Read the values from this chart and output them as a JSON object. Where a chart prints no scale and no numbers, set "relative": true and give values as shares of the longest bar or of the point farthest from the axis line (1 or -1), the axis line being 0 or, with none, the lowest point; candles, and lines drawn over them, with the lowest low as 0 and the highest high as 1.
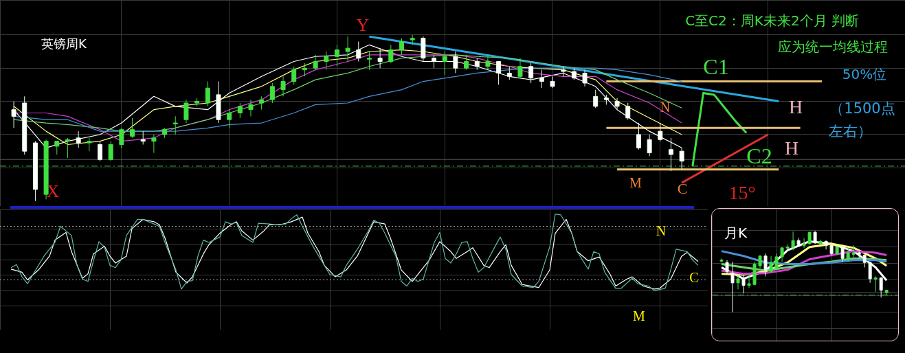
{
  "chart_data": [
    {
      "type": "candlestick",
      "title": "英镑周K",
      "relative": true,
      "grid": true,
      "tick_labels": false,
      "categories": [
        null,
        null,
        null,
        null,
        null,
        null,
        null,
        null,
        null,
        null,
        null,
        null,
        null,
        null,
        null,
        null,
        null,
        null,
        null,
        null,
        null,
        null,
        null,
        null,
        null,
        null,
        null,
        null,
        null,
        null,
        null,
        null,
        null,
        null,
        null,
        null,
        null,
        null,
        null,
        null,
        null,
        null,
        null,
        null,
        null,
        null,
        null,
        null,
        null,
        null,
        null,
        null,
        null,
        null,
        null,
        null,
        null,
        null,
        null,
        null,
        null,
        null,
        null,
        null,
        null,
        null,
        null,
        null,
        null,
        null,
        null,
        null,
        null,
        null,
        null,
        null,
        null,
        null,
        null,
        null,
        null,
        null
      ],
      "ohlc": [
        [
          0.55,
          0.6,
          0.44,
          0.51
        ],
        [
          0.59,
          0.63,
          0.28,
          0.3
        ],
        [
          0.35,
          0.36,
          0,
          0.07
        ],
        [
          0.04,
          0.37,
          0.01,
          0.36
        ],
        [
          0.33,
          0.36,
          0.28,
          0.36
        ],
        [
          0.36,
          0.38,
          0.26,
          0.37
        ],
        [
          0.38,
          0.42,
          0.32,
          0.35
        ],
        [
          0.35,
          0.38,
          0.3,
          0.36
        ],
        [
          0.34,
          0.36,
          0.24,
          0.25
        ],
        [
          0.25,
          0.36,
          0.24,
          0.34
        ],
        [
          0.34,
          0.44,
          0.32,
          0.43
        ],
        [
          0.39,
          0.5,
          0.38,
          0.43
        ],
        [
          0.37,
          0.42,
          0.34,
          0.36
        ],
        [
          0.36,
          0.4,
          0.29,
          0.38
        ],
        [
          0.4,
          0.44,
          0.38,
          0.43
        ],
        [
          0.47,
          0.51,
          0.4,
          0.47
        ],
        [
          0.49,
          0.61,
          0.47,
          0.59
        ],
        [
          0.59,
          0.62,
          0.57,
          0.6
        ],
        [
          0.59,
          0.72,
          0.57,
          0.68
        ],
        [
          0.64,
          0.72,
          0.47,
          0.49
        ],
        [
          0.49,
          0.55,
          0.44,
          0.53
        ],
        [
          0.53,
          0.59,
          0.5,
          0.57
        ],
        [
          0.55,
          0.61,
          0.51,
          0.58
        ],
        [
          0.59,
          0.63,
          0.55,
          0.61
        ],
        [
          0.61,
          0.71,
          0.59,
          0.69
        ],
        [
          0.67,
          0.75,
          0.63,
          0.72
        ],
        [
          0.72,
          0.81,
          0.7,
          0.79
        ],
        [
          0.79,
          0.83,
          0.75,
          0.8
        ],
        [
          0.8,
          0.88,
          0.79,
          0.84
        ],
        [
          0.84,
          0.9,
          0.79,
          0.87
        ],
        [
          0.87,
          0.94,
          0.81,
          0.91
        ],
        [
          0.9,
          0.99,
          0.84,
          0.92
        ],
        [
          0.91,
          0.96,
          0.84,
          0.86
        ],
        [
          0.86,
          0.9,
          0.79,
          0.86
        ],
        [
          0.86,
          0.92,
          0.8,
          0.84
        ],
        [
          0.84,
          0.94,
          0.83,
          0.91
        ],
        [
          0.91,
          0.98,
          0.88,
          0.96
        ],
        [
          0.97,
          1.0,
          0.94,
          0.98
        ],
        [
          0.98,
          0.99,
          0.84,
          0.86
        ],
        [
          0.86,
          0.88,
          0.8,
          0.84
        ],
        [
          0.84,
          0.9,
          0.76,
          0.87
        ],
        [
          0.87,
          0.9,
          0.77,
          0.8
        ],
        [
          0.8,
          0.88,
          0.79,
          0.84
        ],
        [
          0.84,
          0.86,
          0.79,
          0.81
        ],
        [
          0.81,
          0.88,
          0.79,
          0.84
        ],
        [
          0.84,
          0.84,
          0.7,
          0.77
        ],
        [
          0.77,
          0.81,
          0.73,
          0.75
        ],
        [
          0.75,
          0.86,
          0.74,
          0.81
        ],
        [
          0.81,
          0.83,
          0.71,
          0.74
        ],
        [
          0.74,
          0.79,
          0.68,
          0.72
        ],
        [
          0.72,
          0.75,
          0.68,
          0.69
        ],
        [
          0.79,
          0.81,
          0.75,
          0.78
        ],
        [
          0.78,
          0.8,
          0.73,
          0.74
        ],
        [
          0.77,
          0.79,
          0.69,
          0.71
        ],
        [
          0.63,
          0.67,
          0.56,
          0.57
        ],
        [
          0.62,
          0.64,
          0.58,
          0.61
        ],
        [
          0.6,
          0.62,
          0.55,
          0.57
        ],
        [
          0.57,
          0.59,
          0.49,
          0.5
        ],
        [
          0.4,
          0.47,
          0.31,
          0.32
        ],
        [
          0.37,
          0.4,
          0.27,
          0.29
        ],
        [
          0.42,
          0.47,
          0.36,
          0.37
        ],
        [
          0.31,
          0.38,
          0.18,
          0.28
        ],
        [
          0.3,
          0.32,
          0.19,
          0.24
        ],
        null,
        null,
        null,
        null,
        null,
        null,
        null,
        null,
        null,
        null,
        null,
        null,
        null,
        null,
        null,
        null,
        null,
        null,
        null
      ],
      "series": [
        {
          "type": "line",
          "color": "#4a90d8",
          "values": [
            0.51,
            null,
            null,
            0.49,
            null,
            0.49,
            null,
            null,
            0.42,
            null,
            0.42,
            null,
            null,
            0.42,
            null,
            0.42,
            null,
            null,
            0.44,
            null,
            0.46,
            null,
            null,
            0.47,
            null,
            null,
            0.53,
            null,
            0.58,
            null,
            null,
            0.59,
            null,
            0.63,
            null,
            null,
            0.67,
            null,
            0.72,
            null,
            null,
            0.75,
            null,
            0.77,
            null,
            null,
            0.79,
            null,
            0.8,
            null,
            null,
            0.8,
            null,
            null,
            0.8,
            null,
            0.79,
            null,
            null,
            0.76,
            null,
            null,
            0.72,
            null,
            null,
            null,
            null,
            null,
            null,
            null,
            null,
            null,
            null,
            null,
            null,
            null,
            null,
            null,
            null,
            null,
            null,
            null
          ]
        },
        {
          "type": "line",
          "color": "#70d070",
          "values": [
            0.49,
            null,
            null,
            0.47,
            null,
            0.46,
            null,
            null,
            0.44,
            null,
            0.42,
            null,
            null,
            0.42,
            null,
            0.44,
            null,
            null,
            0.49,
            null,
            0.53,
            null,
            null,
            0.59,
            null,
            null,
            0.67,
            null,
            0.73,
            null,
            null,
            0.77,
            null,
            0.81,
            null,
            null,
            0.86,
            null,
            0.87,
            null,
            null,
            0.88,
            null,
            0.87,
            null,
            null,
            0.86,
            null,
            0.84,
            null,
            null,
            0.81,
            null,
            null,
            0.79,
            null,
            0.73,
            null,
            null,
            0.65,
            null,
            null,
            0.56,
            null,
            null,
            null,
            null,
            null,
            null,
            null,
            null,
            null,
            null,
            null,
            null,
            null,
            null,
            null,
            null,
            null,
            null,
            null
          ]
        },
        {
          "type": "line",
          "color": "#d040d0",
          "values": [
            0.53,
            null,
            null,
            0.53,
            null,
            0.51,
            null,
            null,
            0.43,
            null,
            0.36,
            null,
            null,
            0.38,
            null,
            0.44,
            null,
            null,
            0.49,
            null,
            0.55,
            null,
            null,
            0.61,
            null,
            null,
            0.73,
            null,
            0.79,
            null,
            null,
            0.84,
            null,
            0.88,
            null,
            null,
            0.88,
            null,
            0.88,
            null,
            null,
            0.88,
            null,
            0.86,
            null,
            null,
            0.81,
            null,
            0.77,
            null,
            null,
            0.75,
            null,
            null,
            0.75,
            null,
            0.67,
            null,
            null,
            0.59,
            null,
            null,
            0.47,
            null,
            null,
            null,
            null,
            null,
            null,
            null,
            null,
            null,
            null,
            null,
            null,
            null,
            null,
            null,
            null,
            null,
            null,
            null
          ]
        },
        {
          "type": "line",
          "color": "#ffff80",
          "values": [
            0.57,
            null,
            null,
            0.42,
            null,
            0.34,
            null,
            null,
            0.36,
            null,
            0.4,
            null,
            null,
            0.55,
            null,
            0.57,
            null,
            null,
            0.59,
            null,
            0.63,
            null,
            null,
            0.69,
            null,
            null,
            0.79,
            null,
            0.84,
            null,
            null,
            0.86,
            null,
            0.9,
            null,
            null,
            0.91,
            null,
            0.9,
            null,
            null,
            0.87,
            null,
            0.84,
            null,
            null,
            0.81,
            null,
            0.8,
            null,
            null,
            0.79,
            null,
            null,
            0.73,
            null,
            0.6,
            null,
            null,
            0.5,
            null,
            null,
            0.4,
            null,
            null,
            null,
            null,
            null,
            null,
            null,
            null,
            null,
            null,
            null,
            null,
            null,
            null,
            null,
            null,
            null,
            null,
            null
          ]
        },
        {
          "type": "line",
          "color": "#ffffff",
          "values": [
            0.55,
            null,
            null,
            0.32,
            null,
            0.36,
            null,
            null,
            0.4,
            null,
            0.47,
            null,
            null,
            0.63,
            null,
            0.57,
            null,
            null,
            0.55,
            null,
            0.65,
            null,
            null,
            0.75,
            null,
            null,
            0.84,
            null,
            0.87,
            null,
            null,
            0.88,
            null,
            0.94,
            null,
            null,
            0.87,
            null,
            0.84,
            null,
            null,
            0.84,
            null,
            0.81,
            null,
            null,
            0.75,
            null,
            0.73,
            null,
            null,
            0.77,
            null,
            null,
            0.69,
            null,
            0.55,
            null,
            null,
            0.42,
            null,
            null,
            0.32,
            null,
            null,
            null,
            null,
            null,
            null,
            null,
            null,
            null,
            null,
            null,
            null,
            null,
            null,
            null,
            null,
            null,
            null,
            null
          ]
        },
        {
          "type": "line",
          "color": "#e8c070",
          "values": [
            null,
            null,
            null,
            null,
            null,
            null,
            null,
            null,
            null,
            null,
            null,
            null,
            null,
            null,
            null,
            null,
            null,
            null,
            null,
            null,
            null,
            null,
            null,
            null,
            null,
            null,
            null,
            null,
            null,
            null,
            null,
            null,
            null,
            null,
            null,
            null,
            null,
            null,
            null,
            null,
            null,
            null,
            null,
            null,
            null,
            null,
            null,
            null,
            null,
            null,
            null,
            null,
            null,
            null,
            null,
            0.72,
            null,
            null,
            null,
            null,
            null,
            null,
            null,
            null,
            null,
            null,
            null,
            null,
            null,
            null,
            null,
            null,
            null,
            null,
            null,
            0.72,
            null,
            null,
            null,
            null,
            null,
            null
          ]
        },
        {
          "type": "line",
          "color": "#e8c070",
          "values": [
            null,
            null,
            null,
            null,
            null,
            null,
            null,
            null,
            null,
            null,
            null,
            null,
            null,
            null,
            null,
            null,
            null,
            null,
            null,
            null,
            null,
            null,
            null,
            null,
            null,
            null,
            null,
            null,
            null,
            null,
            null,
            null,
            null,
            null,
            null,
            null,
            null,
            null,
            null,
            null,
            null,
            null,
            null,
            null,
            null,
            null,
            null,
            null,
            null,
            null,
            null,
            null,
            null,
            null,
            null,
            0.44,
            null,
            null,
            null,
            null,
            null,
            null,
            null,
            null,
            null,
            null,
            null,
            null,
            null,
            null,
            null,
            null,
            null,
            0.44,
            null,
            null,
            null,
            null,
            null,
            null,
            null,
            null
          ]
        },
        {
          "type": "line",
          "color": "#e8c070",
          "values": [
            null,
            null,
            null,
            null,
            null,
            null,
            null,
            null,
            null,
            null,
            null,
            null,
            null,
            null,
            null,
            null,
            null,
            null,
            null,
            null,
            null,
            null,
            null,
            null,
            null,
            null,
            null,
            null,
            null,
            null,
            null,
            null,
            null,
            null,
            null,
            null,
            null,
            null,
            null,
            null,
            null,
            null,
            null,
            null,
            null,
            null,
            null,
            null,
            null,
            null,
            null,
            null,
            null,
            null,
            null,
            null,
            0.19,
            null,
            null,
            null,
            null,
            null,
            null,
            null,
            null,
            null,
            null,
            null,
            null,
            null,
            null,
            0.19,
            null,
            null,
            null,
            null,
            null,
            null,
            null,
            null,
            null,
            null
          ]
        },
        {
          "type": "line",
          "color": "#2aa8e0",
          "values": [
            null,
            null,
            null,
            null,
            null,
            null,
            null,
            null,
            null,
            null,
            null,
            null,
            null,
            null,
            null,
            null,
            null,
            null,
            null,
            null,
            null,
            null,
            null,
            null,
            null,
            null,
            null,
            null,
            null,
            null,
            null,
            null,
            null,
            0.99,
            null,
            null,
            null,
            null,
            null,
            null,
            null,
            null,
            null,
            null,
            null,
            null,
            null,
            null,
            null,
            null,
            null,
            null,
            null,
            null,
            null,
            null,
            null,
            null,
            null,
            null,
            null,
            null,
            null,
            null,
            null,
            null,
            null,
            null,
            null,
            null,
            null,
            0.6,
            null,
            null,
            null,
            null,
            null,
            null,
            null,
            null,
            null,
            null
          ]
        },
        {
          "type": "line",
          "color": "#e03030",
          "values": [
            null,
            null,
            null,
            null,
            null,
            null,
            null,
            null,
            null,
            null,
            null,
            null,
            null,
            null,
            null,
            null,
            null,
            null,
            null,
            null,
            null,
            null,
            null,
            null,
            null,
            null,
            null,
            null,
            null,
            null,
            null,
            null,
            null,
            null,
            null,
            null,
            null,
            null,
            null,
            null,
            null,
            null,
            null,
            null,
            null,
            null,
            null,
            null,
            null,
            null,
            null,
            null,
            null,
            null,
            null,
            null,
            null,
            null,
            null,
            null,
            null,
            null,
            0.11,
            null,
            null,
            null,
            null,
            null,
            null,
            null,
            0.4,
            null,
            null,
            null,
            null,
            null,
            null,
            null,
            null,
            null,
            null,
            null
          ]
        },
        {
          "type": "line",
          "color": "#40e040",
          "values": [
            null,
            null,
            null,
            null,
            null,
            null,
            null,
            null,
            null,
            null,
            null,
            null,
            null,
            null,
            null,
            null,
            null,
            null,
            null,
            null,
            null,
            null,
            null,
            null,
            null,
            null,
            null,
            null,
            null,
            null,
            null,
            null,
            null,
            null,
            null,
            null,
            null,
            null,
            null,
            null,
            null,
            null,
            null,
            null,
            null,
            null,
            null,
            null,
            null,
            null,
            null,
            null,
            null,
            null,
            null,
            null,
            null,
            null,
            null,
            null,
            null,
            null,
            null,
            0.21,
            0.65,
            0.64,
            0.56,
            0.48,
            0.41,
            null,
            null,
            null,
            null,
            null,
            null,
            null,
            null,
            null,
            null,
            null,
            null,
            null
          ]
        }
      ],
      "ref_lines": [
        {
          "axis": "y",
          "value": 0.21,
          "color": "#40c040",
          "line_style": "dashed"
        },
        {
          "axis": "y",
          "value": 0.25,
          "color": "#555555"
        }
      ],
      "annotations": [
        "X",
        "Y",
        "N",
        "M",
        "C",
        "H",
        "H",
        "C1",
        "C2",
        "15°",
        "50%位",
        "（1500点",
        "左右）",
        "C至C2：周K未来2个月 判断",
        "应为统一均线过程"
      ]
    },
    {
      "type": "line",
      "relative": true,
      "grid": true,
      "tick_labels": false,
      "categories": [
        null,
        null,
        null,
        null,
        null,
        null,
        null,
        null,
        null,
        null,
        null,
        null,
        null,
        null,
        null,
        null,
        null,
        null,
        null,
        null,
        null,
        null,
        null,
        null,
        null,
        null,
        null,
        null,
        null,
        null,
        null,
        null,
        null,
        null,
        null,
        null,
        null,
        null,
        null,
        null,
        null,
        null,
        null,
        null,
        null,
        null,
        null,
        null,
        null,
        null,
        null,
        null,
        null,
        null,
        null,
        null,
        null,
        null,
        null,
        null,
        null,
        null,
        null,
        null,
        null,
        null,
        null,
        null,
        null,
        null,
        null,
        null,
        null,
        null,
        null,
        null,
        null,
        null,
        null,
        null,
        null,
        null,
        null,
        null,
        null,
        null,
        null,
        null,
        null,
        null,
        null,
        null,
        null,
        null,
        null,
        null,
        null,
        null,
        null,
        null,
        null,
        null,
        null,
        null,
        null,
        null,
        null,
        null,
        null,
        null,
        null,
        null,
        null,
        null,
        null,
        null,
        null,
        null,
        null,
        null,
        null,
        null,
        null,
        null,
        null,
        null,
        null,
        null,
        null
      ],
      "series": [
        {
          "type": "line",
          "color": "#5fb8a8",
          "values": [
            null,
            null,
            0.3,
            0.34,
            0.18,
            0.09,
            0.21,
            null,
            0.45,
            null,
            0.63,
            0.84,
            null,
            0.72,
            0.33,
            0.15,
            0.12,
            0.39,
            0.64,
            0.57,
            0.33,
            0.3,
            0.4,
            0.72,
            null,
            0.93,
            0.93,
            null,
            0.87,
            0.84,
            0.63,
            null,
            0.27,
            0.02,
            0.12,
            0.13,
            0.45,
            0.66,
            0.63,
            null,
            0.7,
            0.9,
            0.87,
            0.89,
            0.72,
            null,
            0.63,
            0.88,
            null,
            0.87,
            0.86,
            null,
            0.87,
            0.94,
            0.99,
            0.84,
            null,
            0.57,
            null,
            0.33,
            0.21,
            null,
            0.18,
            0.33,
            null,
            0.54,
            null,
            0.78,
            0.92,
            0.88,
            0.75,
            null,
            0.45,
            0.12,
            0.06,
            0.16,
            0.12,
            0.15,
            null,
            0.63,
            0.76,
            0.42,
            0.36,
            0.48,
            0.63,
            0.64,
            0.42,
            0.24,
            0.3,
            null,
            0.57,
            0.7,
            0.54,
            0.21,
            null,
            0.06,
            null,
            0.04,
            0.12,
            null,
            0.57,
            1.0,
            0.99,
            null,
            0.75,
            0.51,
            null,
            0.28,
            0.51,
            0.48,
            0.24,
            null,
            0.03,
            0.03,
            null,
            0.16,
            0.09,
            null,
            0.06,
            0.0,
            null,
            0.03,
            0.27,
            0.54,
            null,
            0.51,
            0.4,
            0.33,
            null
          ]
        },
        {
          "type": "line",
          "color": "#ffffff",
          "values": [
            null,
            null,
            0.28,
            null,
            0.24,
            0.14,
            null,
            0.27,
            null,
            0.45,
            0.66,
            null,
            0.76,
            0.51,
            null,
            0.16,
            0.22,
            0.48,
            null,
            0.58,
            0.45,
            0.36,
            null,
            0.45,
            0.81,
            null,
            0.93,
            null,
            0.9,
            0.86,
            0.69,
            null,
            0.24,
            null,
            0.1,
            0.18,
            null,
            0.48,
            0.6,
            null,
            0.75,
            null,
            0.86,
            0.9,
            0.78,
            null,
            0.66,
            null,
            0.78,
            0.86,
            null,
            0.86,
            null,
            0.9,
            null,
            0.96,
            0.75,
            null,
            0.51,
            0.33,
            null,
            0.18,
            null,
            0.27,
            null,
            0.45,
            null,
            0.75,
            0.9,
            null,
            0.87,
            0.69,
            null,
            0.27,
            null,
            0.12,
            0.21,
            null,
            0.39,
            null,
            0.64,
            null,
            0.51,
            0.42,
            null,
            0.51,
            0.56,
            null,
            0.33,
            0.3,
            null,
            0.51,
            0.6,
            0.33,
            null,
            0.08,
            null,
            null,
            0.04,
            null,
            0.27,
            0.75,
            null,
            0.93,
            0.75,
            0.51,
            null,
            0.39,
            null,
            0.44,
            null,
            0.21,
            0.06,
            null,
            0.15,
            0.18,
            null,
            0.06,
            null,
            0.02,
            0.03,
            null,
            0.15,
            null,
            0.45,
            0.5,
            null,
            0.38,
            null
          ]
        }
      ],
      "ref_lines": [
        {
          "axis": "y",
          "value": 0.84,
          "color": "#aaaaaa",
          "line_style": "dotted"
        },
        {
          "axis": "y",
          "value": 0.14,
          "color": "#aaaaaa",
          "line_style": "dotted"
        }
      ],
      "annotations": [
        "N",
        "C",
        "M"
      ]
    },
    {
      "type": "candlestick",
      "title": "月K",
      "relative": true,
      "grid": true,
      "tick_labels": false,
      "categories": [
        null,
        null,
        null,
        null,
        null,
        null,
        null,
        null,
        null,
        null,
        null,
        null,
        null,
        null,
        null,
        null,
        null,
        null,
        null,
        null,
        null,
        null,
        null,
        null,
        null,
        null,
        null,
        null,
        null,
        null,
        null
      ],
      "ohlc": [
        [
          0.63,
          0.66,
          0.61,
          0.64
        ],
        [
          0.61,
          0.64,
          0.47,
          0.5
        ],
        [
          0.48,
          0.62,
          0,
          0.36
        ],
        [
          0.36,
          0.46,
          0.28,
          0.41
        ],
        [
          0.42,
          0.46,
          0.23,
          0.33
        ],
        [
          0.33,
          0.47,
          0.3,
          0.35
        ],
        [
          0.34,
          0.62,
          0.33,
          0.59
        ],
        [
          0.57,
          0.7,
          0.54,
          0.69
        ],
        [
          0.69,
          0.72,
          0.44,
          0.51
        ],
        [
          0.5,
          0.69,
          0.48,
          0.61
        ],
        [
          0.54,
          0.72,
          0.52,
          0.68
        ],
        [
          0.68,
          0.8,
          0.62,
          0.79
        ],
        [
          0.79,
          0.83,
          0.77,
          0.8
        ],
        [
          0.8,
          0.99,
          0.76,
          0.88
        ],
        [
          0.88,
          0.91,
          0.81,
          0.83
        ],
        [
          0.82,
          0.91,
          0.79,
          0.84
        ],
        [
          0.84,
          0.99,
          0.83,
          0.98
        ],
        [
          0.98,
          1.0,
          0.84,
          0.85
        ],
        [
          0.84,
          0.89,
          0.83,
          0.87
        ],
        [
          0.87,
          0.88,
          0.77,
          0.82
        ],
        [
          0.82,
          0.83,
          0.7,
          0.72
        ],
        [
          0.72,
          0.81,
          0.7,
          0.8
        ],
        [
          0.8,
          0.83,
          0.62,
          0.66
        ],
        [
          0.66,
          0.79,
          0.62,
          0.73
        ],
        [
          0.71,
          0.82,
          0.68,
          0.73
        ],
        [
          0.73,
          0.75,
          0.66,
          0.71
        ],
        [
          0.7,
          0.72,
          0.55,
          0.61
        ],
        [
          0.61,
          0.62,
          0.36,
          0.41
        ],
        [
          0.41,
          0.44,
          0.25,
          0.42
        ],
        [
          0.42,
          0.43,
          0.18,
          0.27
        ],
        [
          0.24,
          0.27,
          0.21,
          0.27
        ]
      ],
      "series": [
        {
          "type": "line",
          "color": "#4a90d8",
          "values": [
            0.75,
            null,
            null,
            null,
            0.69,
            null,
            null,
            null,
            0.61,
            null,
            null,
            null,
            0.59,
            null,
            null,
            null,
            0.59,
            null,
            null,
            null,
            0.61,
            null,
            null,
            null,
            0.64,
            null,
            null,
            null,
            0.64,
            null,
            0.62
          ]
        },
        {
          "type": "line",
          "color": "#70d070",
          "values": [
            0.59,
            null,
            null,
            null,
            0.55,
            null,
            null,
            null,
            0.51,
            null,
            null,
            null,
            0.55,
            null,
            null,
            null,
            0.59,
            null,
            null,
            null,
            0.62,
            null,
            null,
            null,
            0.66,
            null,
            null,
            null,
            0.65,
            null,
            0.64
          ]
        },
        {
          "type": "line",
          "color": "#d040d0",
          "values": [
            0.51,
            null,
            null,
            null,
            0.47,
            null,
            null,
            null,
            0.48,
            null,
            null,
            null,
            0.52,
            null,
            null,
            null,
            0.65,
            null,
            null,
            null,
            0.7,
            null,
            null,
            null,
            0.75,
            null,
            null,
            null,
            0.73,
            null,
            0.7
          ]
        },
        {
          "type": "line",
          "color": "#ffff80",
          "values": [
            0.47,
            null,
            null,
            null,
            0.46,
            null,
            null,
            null,
            0.5,
            null,
            null,
            null,
            0.61,
            null,
            null,
            null,
            0.8,
            null,
            null,
            null,
            0.84,
            null,
            null,
            null,
            0.79,
            null,
            null,
            null,
            0.66,
            null,
            0.57
          ]
        },
        {
          "type": "line",
          "color": "#ffffff",
          "values": [
            0.55,
            null,
            null,
            null,
            0.41,
            null,
            null,
            null,
            0.51,
            null,
            null,
            null,
            0.76,
            null,
            null,
            null,
            0.87,
            null,
            null,
            null,
            0.84,
            null,
            null,
            null,
            0.75,
            null,
            null,
            null,
            0.55,
            null,
            0.39
          ]
        }
      ],
      "ref_lines": [
        {
          "axis": "y",
          "value": 0.21,
          "color": "#40c040",
          "line_style": "dashed"
        },
        {
          "axis": "y",
          "value": 0.24,
          "color": "#555555"
        }
      ]
    }
  ]
}
